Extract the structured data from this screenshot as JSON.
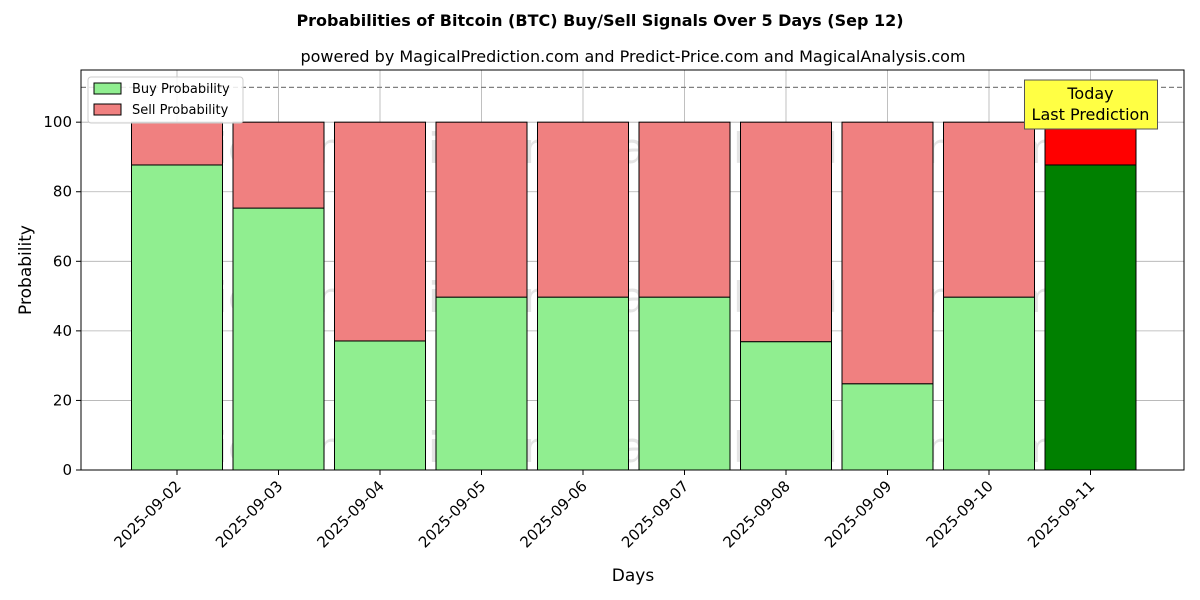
{
  "chart_data": {
    "type": "bar",
    "stacked": true,
    "title": "Probabilities of Bitcoin (BTC) Buy/Sell Signals Over 5 Days (Sep 12)",
    "subtitle": "powered by MagicalPrediction.com and Predict-Price.com and MagicalAnalysis.com",
    "xlabel": "Days",
    "ylabel": "Probability",
    "ylim": [
      0,
      115
    ],
    "yticks": [
      0,
      20,
      40,
      60,
      80,
      100
    ],
    "ytick_labels": [
      "0",
      "20",
      "40",
      "60",
      "80",
      "100"
    ],
    "reference_line": 110,
    "grid": true,
    "legend_position": "top-left",
    "categories": [
      "2025-09-02",
      "2025-09-03",
      "2025-09-04",
      "2025-09-05",
      "2025-09-06",
      "2025-09-07",
      "2025-09-08",
      "2025-09-09",
      "2025-09-10",
      "2025-09-11"
    ],
    "series": [
      {
        "name": "Buy Probability",
        "color": "#90ee90",
        "values": [
          87.7,
          75.3,
          37.1,
          49.7,
          49.7,
          49.7,
          36.9,
          24.8,
          49.7,
          87.7
        ]
      },
      {
        "name": "Sell Probability",
        "color": "#f08080",
        "values": [
          12.3,
          24.7,
          62.9,
          50.3,
          50.3,
          50.3,
          63.1,
          75.2,
          50.3,
          12.3
        ]
      }
    ],
    "highlight": {
      "index": 9,
      "buy_color": "#008000",
      "sell_color": "#ff0000",
      "annotation": [
        "Today",
        "Last Prediction"
      ],
      "annotation_bg": "#ffff44"
    },
    "watermarks": [
      "MagicalAnalysis.com",
      "MagicalPrediction.com"
    ]
  }
}
